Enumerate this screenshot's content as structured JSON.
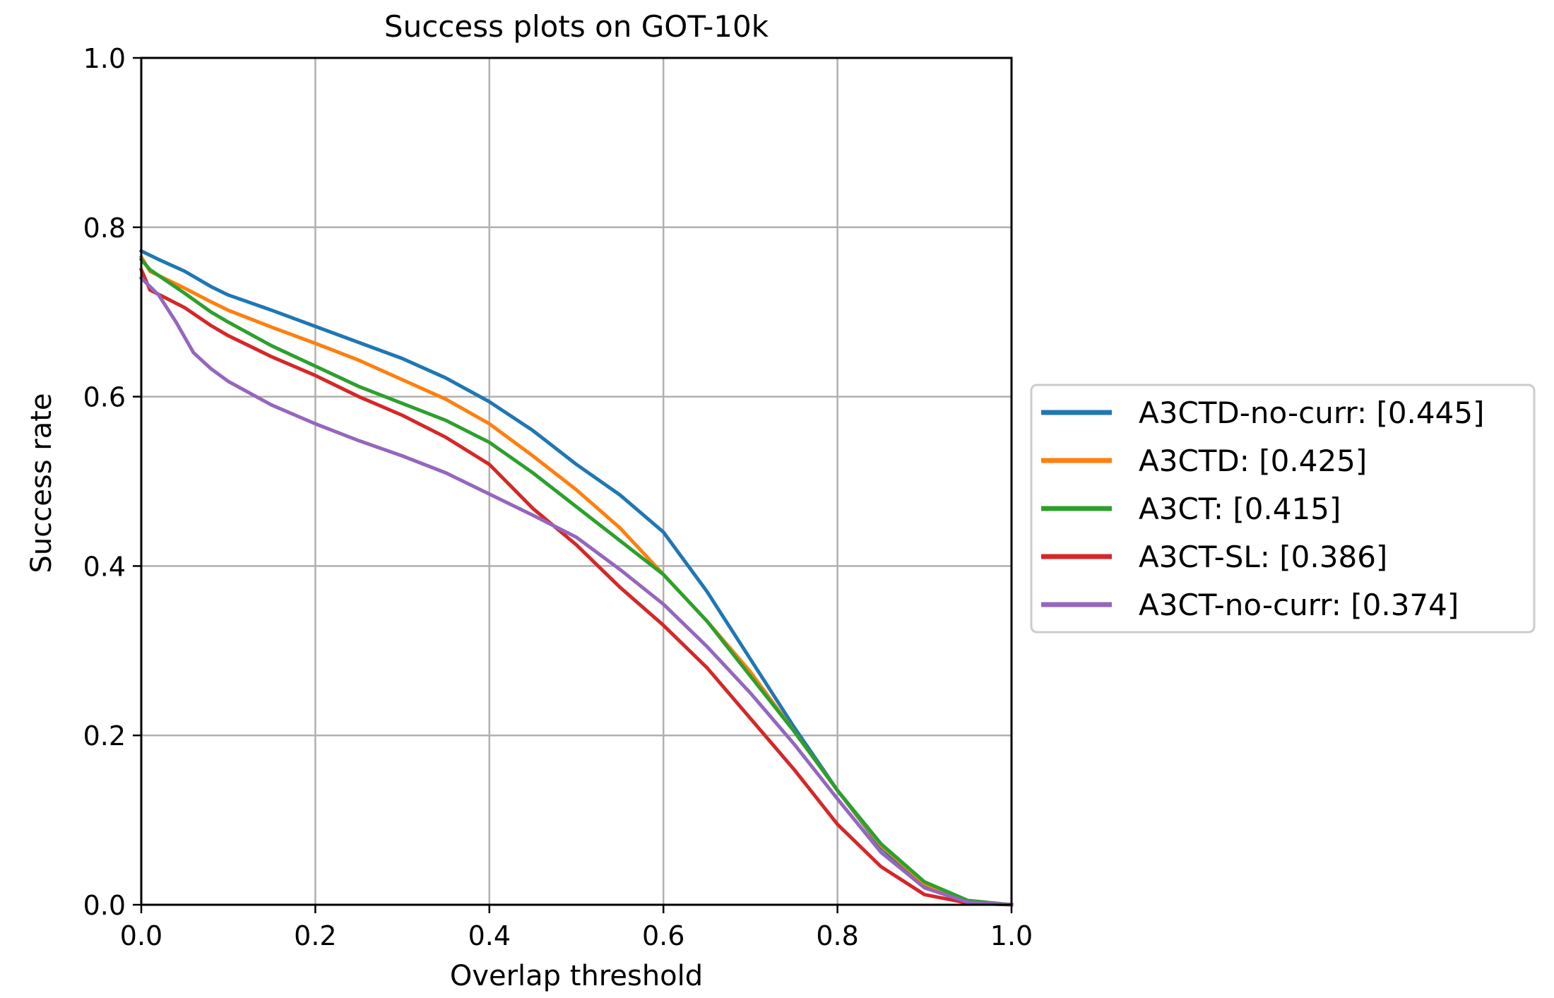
{
  "chart_data": {
    "type": "line",
    "title": "Success plots on GOT-10k",
    "xlabel": "Overlap threshold",
    "ylabel": "Success rate",
    "xlim": [
      0.0,
      1.0
    ],
    "ylim": [
      0.0,
      1.0
    ],
    "xticks": [
      "0.0",
      "0.2",
      "0.4",
      "0.6",
      "0.8",
      "1.0"
    ],
    "yticks": [
      "0.0",
      "0.2",
      "0.4",
      "0.6",
      "0.8",
      "1.0"
    ],
    "grid": true,
    "legend_position": "center-right outside",
    "series": [
      {
        "name": "A3CTD-no-curr: [0.445]",
        "color": "#1f77b4",
        "x": [
          0.0,
          0.02,
          0.05,
          0.08,
          0.1,
          0.15,
          0.2,
          0.25,
          0.3,
          0.35,
          0.4,
          0.45,
          0.5,
          0.55,
          0.6,
          0.65,
          0.7,
          0.75,
          0.8,
          0.85,
          0.9,
          0.95,
          1.0
        ],
        "y": [
          0.772,
          0.762,
          0.748,
          0.73,
          0.72,
          0.702,
          0.683,
          0.664,
          0.645,
          0.622,
          0.594,
          0.56,
          0.52,
          0.484,
          0.44,
          0.37,
          0.29,
          0.21,
          0.135,
          0.068,
          0.022,
          0.004,
          0.0
        ]
      },
      {
        "name": "A3CTD: [0.425]",
        "color": "#ff7f0e",
        "x": [
          0.0,
          0.01,
          0.05,
          0.08,
          0.1,
          0.15,
          0.2,
          0.25,
          0.3,
          0.35,
          0.4,
          0.45,
          0.5,
          0.55,
          0.6,
          0.65,
          0.7,
          0.75,
          0.8,
          0.85,
          0.9,
          0.95,
          1.0
        ],
        "y": [
          0.765,
          0.748,
          0.728,
          0.712,
          0.702,
          0.682,
          0.663,
          0.643,
          0.62,
          0.597,
          0.568,
          0.53,
          0.49,
          0.445,
          0.39,
          0.335,
          0.275,
          0.205,
          0.135,
          0.07,
          0.025,
          0.004,
          0.0
        ]
      },
      {
        "name": "A3CT: [0.415]",
        "color": "#2ca02c",
        "x": [
          0.0,
          0.01,
          0.05,
          0.08,
          0.1,
          0.15,
          0.2,
          0.25,
          0.3,
          0.35,
          0.4,
          0.45,
          0.5,
          0.55,
          0.6,
          0.65,
          0.7,
          0.75,
          0.8,
          0.85,
          0.9,
          0.95,
          1.0
        ],
        "y": [
          0.762,
          0.75,
          0.722,
          0.7,
          0.688,
          0.66,
          0.636,
          0.612,
          0.592,
          0.572,
          0.546,
          0.51,
          0.47,
          0.43,
          0.39,
          0.335,
          0.27,
          0.205,
          0.135,
          0.072,
          0.027,
          0.005,
          0.0
        ]
      },
      {
        "name": "A3CT-SL: [0.386]",
        "color": "#d62728",
        "x": [
          0.0,
          0.01,
          0.05,
          0.08,
          0.1,
          0.15,
          0.2,
          0.25,
          0.3,
          0.35,
          0.4,
          0.45,
          0.5,
          0.55,
          0.6,
          0.65,
          0.7,
          0.75,
          0.8,
          0.85,
          0.9,
          0.95,
          1.0
        ],
        "y": [
          0.75,
          0.726,
          0.705,
          0.684,
          0.672,
          0.647,
          0.625,
          0.6,
          0.578,
          0.552,
          0.52,
          0.468,
          0.425,
          0.375,
          0.33,
          0.28,
          0.22,
          0.16,
          0.095,
          0.045,
          0.012,
          0.002,
          0.0
        ]
      },
      {
        "name": "A3CT-no-curr: [0.374]",
        "color": "#9467bd",
        "x": [
          0.0,
          0.02,
          0.04,
          0.06,
          0.08,
          0.1,
          0.15,
          0.2,
          0.25,
          0.3,
          0.35,
          0.4,
          0.45,
          0.5,
          0.55,
          0.6,
          0.65,
          0.7,
          0.75,
          0.8,
          0.85,
          0.9,
          0.95,
          1.0
        ],
        "y": [
          0.74,
          0.72,
          0.688,
          0.652,
          0.633,
          0.618,
          0.59,
          0.568,
          0.548,
          0.53,
          0.51,
          0.485,
          0.46,
          0.434,
          0.396,
          0.355,
          0.305,
          0.25,
          0.19,
          0.125,
          0.062,
          0.02,
          0.003,
          0.0
        ]
      }
    ]
  }
}
